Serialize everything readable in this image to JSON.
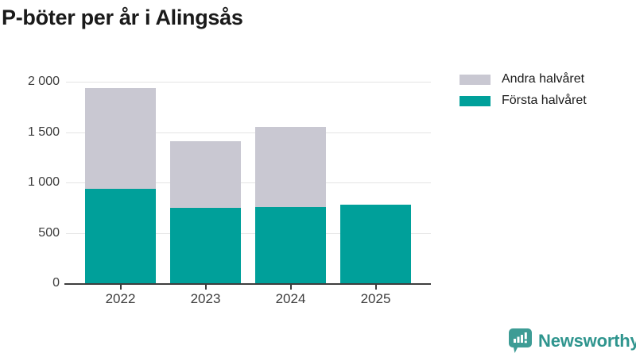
{
  "chart_data": {
    "type": "bar",
    "stacked": true,
    "title": "P-böter per år i Alingsås",
    "categories": [
      "2022",
      "2023",
      "2024",
      "2025"
    ],
    "series": [
      {
        "name": "Första halvåret",
        "color": "#00a09a",
        "values": [
          940,
          750,
          755,
          780
        ]
      },
      {
        "name": "Andra halvåret",
        "color": "#c9c8d2",
        "values": [
          995,
          660,
          800,
          0
        ]
      }
    ],
    "totals": [
      1935,
      1410,
      1555,
      780
    ],
    "xlabel": "",
    "ylabel": "",
    "ylim": [
      0,
      2000
    ],
    "yticks": [
      {
        "value": 0,
        "label": "0"
      },
      {
        "value": 500,
        "label": "500"
      },
      {
        "value": 1000,
        "label": "1 000"
      },
      {
        "value": 1500,
        "label": "1 500"
      },
      {
        "value": 2000,
        "label": "2 000"
      }
    ],
    "grid": true,
    "legend_position": "top-right",
    "legend": [
      {
        "label": "Andra halvåret",
        "color": "#c9c8d2"
      },
      {
        "label": "Första halvåret",
        "color": "#00a09a"
      }
    ],
    "colors": {
      "gridline": "#e4e4e4",
      "axis": "#3d3d3d",
      "tick_text": "#3d3d3d",
      "title_text": "#1a1a1a"
    }
  },
  "branding": {
    "logo_text": "Newsworthy",
    "icon": "newsworthy-chart-bubble-icon",
    "icon_color": "#3d9c95",
    "text_color": "#2f958e"
  }
}
